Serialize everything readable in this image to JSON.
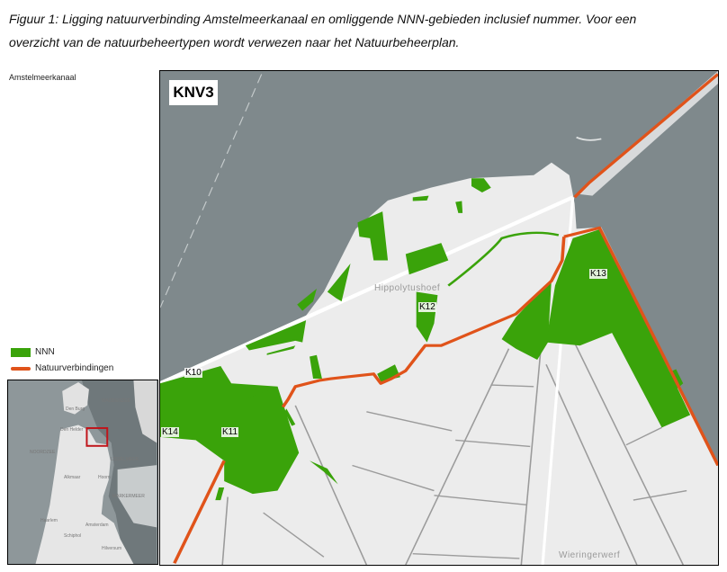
{
  "caption": {
    "line1": "Figuur 1: Ligging natuurverbinding Amstelmeerkanaal en omliggende NNN-gebieden inclusief nummer. Voor een",
    "line2": "overzicht van de natuurbeheertypen wordt verwezen naar het Natuurbeheerplan."
  },
  "map_title": "Amstelmeerkanaal",
  "legend": [
    {
      "label": "NNN",
      "color": "#3aa30a"
    },
    {
      "label": "Natuurverbindingen",
      "color": "#e0531a"
    }
  ],
  "inset": {
    "labels": [
      "Den Burg",
      "Den Helder",
      "NOORDZEE",
      "Alkmaar",
      "Hoorn",
      "MARKERMEER",
      "Haarlem",
      "Amsterdam",
      "Schiphol",
      "Hilversum",
      "WADDENZEE",
      "IJSSELMEER"
    ],
    "highlight_color": "#c0151b"
  },
  "main_map": {
    "badge": "KNV3",
    "area_labels": [
      "K10",
      "K14",
      "K11",
      "K12",
      "K13"
    ],
    "places": [
      "Hippolytushoef",
      "Wieringerwerf"
    ],
    "colors": {
      "water": "#7f898c",
      "land": "#ececec",
      "nnn": "#3aa30a",
      "route": "#e0531a"
    }
  }
}
